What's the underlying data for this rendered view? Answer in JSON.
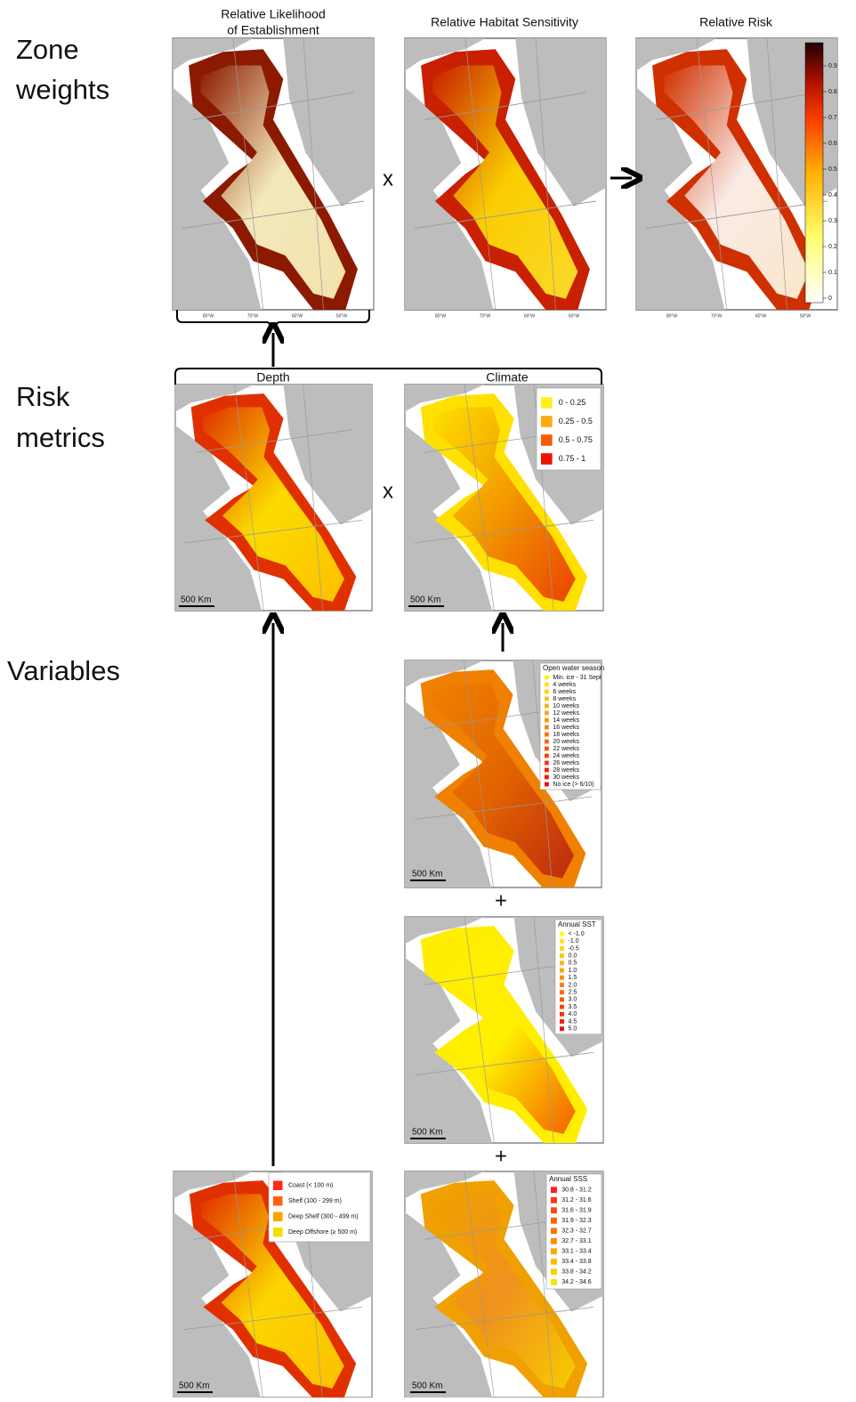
{
  "row_labels": [
    [
      "Zone",
      "weights"
    ],
    [
      "Risk",
      "metrics"
    ],
    [
      "Variables"
    ]
  ],
  "zone_weights": {
    "panels": [
      {
        "title": [
          "Relative Likelihood",
          "of Establishment"
        ],
        "x_labels": [
          "80°W",
          "70°W",
          "60°W",
          "50°W"
        ]
      },
      {
        "title": [
          "Relative Habitat Sensitivity"
        ],
        "x_labels": [
          "80°W",
          "70°W",
          "60°W",
          "50°W"
        ]
      },
      {
        "title": [
          "Relative Risk"
        ],
        "x_labels": [
          "80°W",
          "70°W",
          "60°W",
          "50°W"
        ]
      }
    ],
    "colorbar_ticks": [
      0,
      0.1,
      0.2,
      0.3,
      0.4,
      0.5,
      0.6,
      0.7,
      0.8,
      0.9
    ],
    "operators": [
      "x"
    ]
  },
  "risk_metrics": {
    "depth": {
      "title": "Depth",
      "scale": "500 Km"
    },
    "climate": {
      "title": "Climate",
      "legend": [
        "0 - 0.25",
        "0.25 - 0.5",
        "0.5 - 0.75",
        "0.75 - 1"
      ],
      "scale": "500 Km"
    },
    "operators": [
      "x"
    ]
  },
  "variables": {
    "open_water": {
      "title": "Open water season",
      "legend": [
        "Min. ice - 31 Sept",
        "4 weeks",
        "6 weeks",
        "8 weeks",
        "10 weeks",
        "12 weeks",
        "14 weeks",
        "16 weeks",
        "18 weeks",
        "20 weeks",
        "22 weeks",
        "24 weeks",
        "26 weeks",
        "28 weeks",
        "30 weeks",
        "No ice (> 6/10)"
      ],
      "scale": "500 Km"
    },
    "sst": {
      "title": "Annual SST",
      "legend": [
        "< -1.0",
        "-1.0",
        "-0.5",
        "0.0",
        "0.5",
        "1.0",
        "1.5",
        "2.0",
        "2.5",
        "3.0",
        "3.5",
        "4.0",
        "4.5",
        "5.0"
      ],
      "scale": "500 Km"
    },
    "sss": {
      "title": "Annual SSS",
      "legend": [
        "30.8 - 31.2",
        "31.2 - 31.6",
        "31.6 - 31.9",
        "31.9 - 32.3",
        "32.3 - 32.7",
        "32.7 - 33.1",
        "33.1 - 33.4",
        "33.4 - 33.8",
        "33.8 - 34.2",
        "34.2 - 34.6"
      ],
      "scale": "500 Km"
    },
    "depth": {
      "legend": [
        "Coast (< 100 m)",
        "Shelf (100 - 299 m)",
        "Deep Shelf (300 - 499 m)",
        "Deep Offshore (≥ 500 m)"
      ],
      "scale": "500 Km"
    },
    "operators": [
      "+",
      "+"
    ]
  }
}
